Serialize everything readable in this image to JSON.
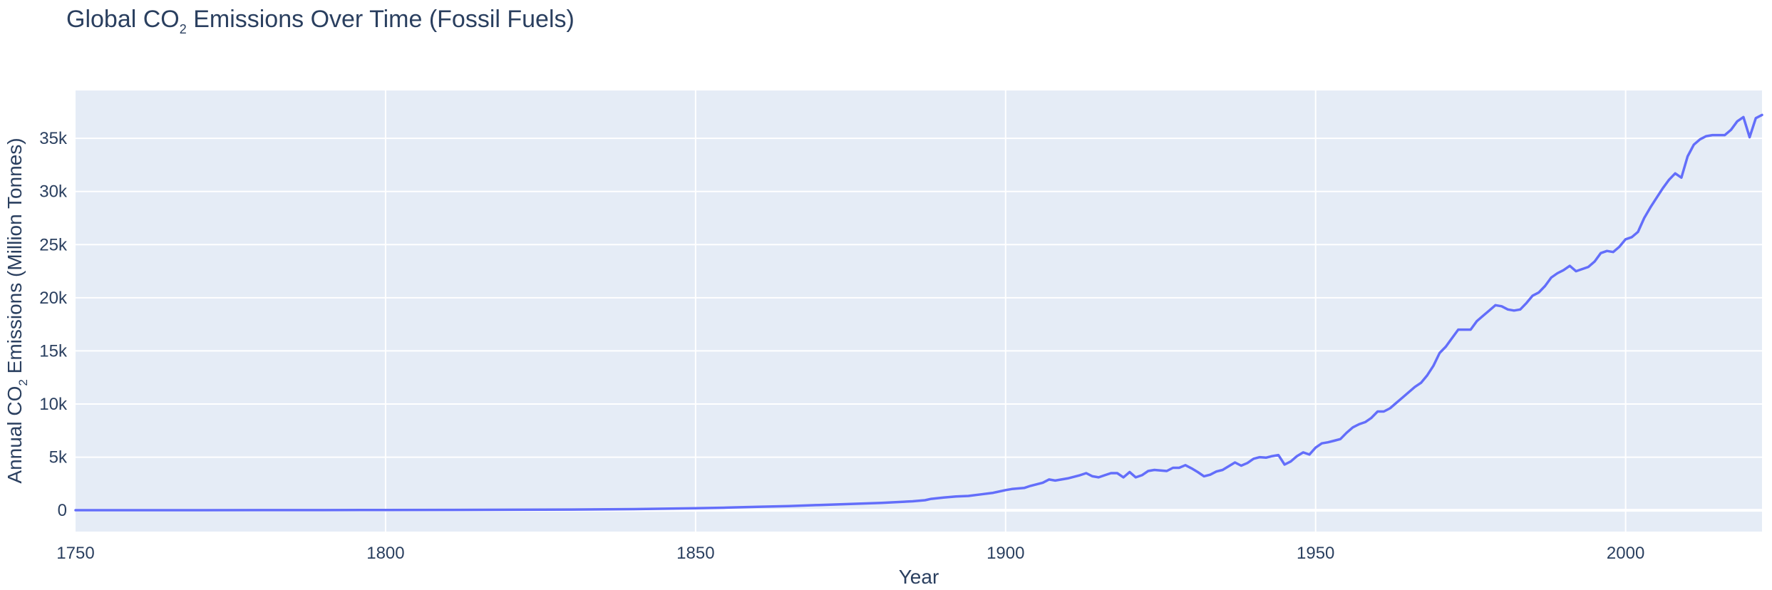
{
  "chart_data": {
    "type": "line",
    "title": "Global CO",
    "title_sub": "2",
    "title_rest": " Emissions Over Time (Fossil Fuels)",
    "xlabel": "Year",
    "ylabel_pre": "Annual CO",
    "ylabel_sub": "2",
    "ylabel_post": " Emissions (Million Tonnes)",
    "xlim": [
      1750,
      2022
    ],
    "ylim": [
      -2000,
      39500
    ],
    "x_ticks": [
      1750,
      1800,
      1850,
      1900,
      1950,
      2000
    ],
    "x_tick_labels": [
      "1750",
      "1800",
      "1850",
      "1900",
      "1950",
      "2000"
    ],
    "y_ticks": [
      0,
      5000,
      10000,
      15000,
      20000,
      25000,
      30000,
      35000
    ],
    "y_tick_labels": [
      "0",
      "5k",
      "10k",
      "15k",
      "20k",
      "25k",
      "30k",
      "35k"
    ],
    "grid": true,
    "line_color": "#636efa",
    "plot_bg": "#e5ecf6",
    "series": [
      {
        "x": [
          1750,
          1760,
          1770,
          1780,
          1790,
          1800,
          1810,
          1820,
          1830,
          1840,
          1850,
          1855,
          1860,
          1865,
          1870,
          1875,
          1880,
          1885,
          1887,
          1888,
          1890,
          1892,
          1894,
          1896,
          1898,
          1900,
          1901,
          1903,
          1904,
          1906,
          1907,
          1908,
          1910,
          1912,
          1913,
          1914,
          1915,
          1916,
          1917,
          1918,
          1919,
          1920,
          1921,
          1922,
          1923,
          1924,
          1926,
          1927,
          1928,
          1929,
          1930,
          1931,
          1932,
          1933,
          1934,
          1935,
          1936,
          1937,
          1938,
          1939,
          1940,
          1941,
          1942,
          1943,
          1944,
          1945,
          1946,
          1947,
          1948,
          1949,
          1950,
          1951,
          1952,
          1953,
          1954,
          1955,
          1956,
          1957,
          1958,
          1959,
          1960,
          1961,
          1962,
          1963,
          1964,
          1965,
          1966,
          1967,
          1968,
          1969,
          1970,
          1971,
          1972,
          1973,
          1974,
          1975,
          1976,
          1977,
          1978,
          1979,
          1980,
          1981,
          1982,
          1983,
          1984,
          1985,
          1986,
          1987,
          1988,
          1989,
          1990,
          1991,
          1992,
          1993,
          1994,
          1995,
          1996,
          1997,
          1998,
          1999,
          2000,
          2001,
          2002,
          2003,
          2004,
          2005,
          2006,
          2007,
          2008,
          2009,
          2010,
          2011,
          2012,
          2013,
          2014,
          2015,
          2016,
          2017,
          2018,
          2019,
          2020,
          2021,
          2022
        ],
        "y": [
          10,
          11,
          13,
          16,
          20,
          30,
          40,
          50,
          70,
          110,
          200,
          250,
          330,
          400,
          500,
          600,
          700,
          850,
          950,
          1080,
          1200,
          1300,
          1350,
          1500,
          1650,
          1900,
          2000,
          2100,
          2300,
          2600,
          2900,
          2800,
          3000,
          3300,
          3500,
          3200,
          3100,
          3300,
          3500,
          3500,
          3100,
          3600,
          3100,
          3300,
          3700,
          3800,
          3700,
          4000,
          4000,
          4250,
          3950,
          3600,
          3200,
          3350,
          3650,
          3800,
          4150,
          4500,
          4200,
          4450,
          4850,
          5000,
          4950,
          5100,
          5200,
          4300,
          4600,
          5100,
          5450,
          5250,
          5900,
          6300,
          6400,
          6550,
          6700,
          7300,
          7800,
          8100,
          8300,
          8700,
          9300,
          9300,
          9600,
          10100,
          10600,
          11100,
          11600,
          12000,
          12700,
          13600,
          14800,
          15400,
          16200,
          17000,
          17000,
          17000,
          17800,
          18300,
          18800,
          19300,
          19200,
          18900,
          18800,
          18900,
          19500,
          20200,
          20500,
          21100,
          21900,
          22300,
          22600,
          23000,
          22500,
          22700,
          22900,
          23400,
          24200,
          24400,
          24300,
          24800,
          25500,
          25700,
          26200,
          27500,
          28500,
          29400,
          30300,
          31100,
          31700,
          31300,
          33300,
          34400,
          34900,
          35200,
          35300,
          35300,
          35300,
          35800,
          36600,
          37000,
          35100,
          36900,
          37200
        ]
      }
    ]
  }
}
